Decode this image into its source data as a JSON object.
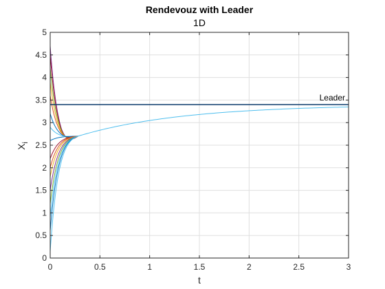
{
  "chart_data": {
    "type": "line",
    "title": "Rendevouz with Leader",
    "subtitle": "1D",
    "xlabel": "t",
    "ylabel_main": "X",
    "ylabel_sub": "i",
    "xlim": [
      0,
      3
    ],
    "ylim": [
      0,
      5
    ],
    "xticks": [
      0,
      0.5,
      1,
      1.5,
      2,
      2.5,
      3
    ],
    "yticks": [
      0,
      0.5,
      1,
      1.5,
      2,
      2.5,
      3,
      3.5,
      4,
      4.5,
      5
    ],
    "xtick_labels": [
      "0",
      "0.5",
      "1",
      "1.5",
      "2",
      "2.5",
      "3"
    ],
    "ytick_labels": [
      "0",
      "0.5",
      "1",
      "1.5",
      "2",
      "2.5",
      "3",
      "3.5",
      "4",
      "4.5",
      "5"
    ],
    "grid": true,
    "leader": {
      "label": "Leader",
      "value": 3.4,
      "color": "#0b3b6b"
    },
    "consensus": {
      "y0": 2.7,
      "t0": 0.28,
      "target": 3.4,
      "rate": 0.95,
      "color": "#4dbeee"
    },
    "agents": [
      {
        "start": 4.7,
        "color": "#7e2f8e"
      },
      {
        "start": 4.5,
        "color": "#a2142f"
      },
      {
        "start": 4.2,
        "color": "#77ac30"
      },
      {
        "start": 3.9,
        "color": "#edb120"
      },
      {
        "start": 3.6,
        "color": "#d95319"
      },
      {
        "start": 3.2,
        "color": "#0072bd"
      },
      {
        "start": 2.9,
        "color": "#4dbeee"
      },
      {
        "start": 2.6,
        "color": "#0072bd"
      },
      {
        "start": 2.2,
        "color": "#a2142f"
      },
      {
        "start": 2.0,
        "color": "#d95319"
      },
      {
        "start": 1.8,
        "color": "#edb120"
      },
      {
        "start": 1.5,
        "color": "#7e2f8e"
      },
      {
        "start": 1.2,
        "color": "#77ac30"
      },
      {
        "start": 0.9,
        "color": "#4dbeee"
      },
      {
        "start": 0.6,
        "color": "#0072bd"
      },
      {
        "start": 0.15,
        "color": "#4dbeee"
      }
    ]
  }
}
